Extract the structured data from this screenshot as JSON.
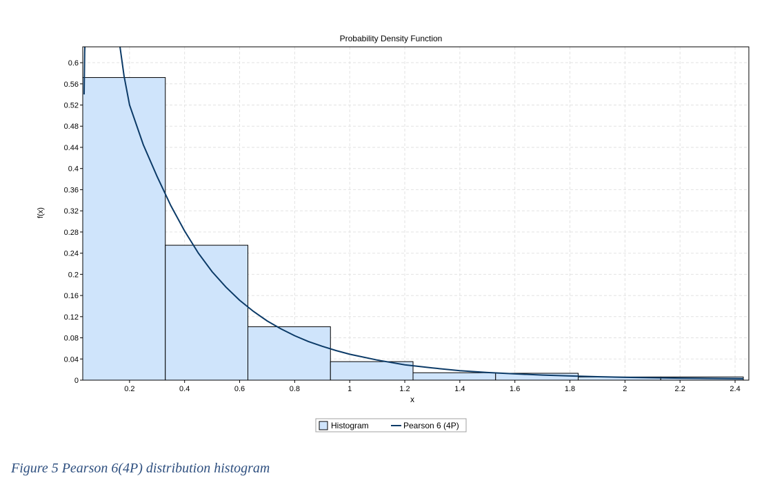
{
  "chart_data": {
    "type": "bar",
    "title": "Probability Density Function",
    "xlabel": "x",
    "ylabel": "f(x)",
    "xlim": [
      0.03,
      2.45
    ],
    "ylim": [
      0,
      0.63
    ],
    "xticks": [
      "0.2",
      "0.4",
      "0.6",
      "0.8",
      "1",
      "1.2",
      "1.4",
      "1.6",
      "1.8",
      "2",
      "2.2",
      "2.4"
    ],
    "yticks": [
      "0",
      "0.04",
      "0.08",
      "0.12",
      "0.16",
      "0.2",
      "0.24",
      "0.28",
      "0.32",
      "0.36",
      "0.4",
      "0.44",
      "0.48",
      "0.52",
      "0.56",
      "0.6"
    ],
    "grid": true,
    "legend_position": "bottom-center",
    "bins": [
      {
        "x0": 0.03,
        "x1": 0.33,
        "value": 0.572
      },
      {
        "x0": 0.33,
        "x1": 0.63,
        "value": 0.255
      },
      {
        "x0": 0.63,
        "x1": 0.93,
        "value": 0.101
      },
      {
        "x0": 0.93,
        "x1": 1.23,
        "value": 0.035
      },
      {
        "x0": 1.23,
        "x1": 1.53,
        "value": 0.014
      },
      {
        "x0": 1.53,
        "x1": 1.83,
        "value": 0.013
      },
      {
        "x0": 1.83,
        "x1": 2.13,
        "value": 0.006
      },
      {
        "x0": 2.13,
        "x1": 2.43,
        "value": 0.006
      }
    ],
    "curve": {
      "name": "Pearson 6 (4P)",
      "points": [
        [
          0.035,
          0.54
        ],
        [
          0.037,
          0.62
        ],
        [
          0.039,
          0.65
        ],
        [
          0.16,
          0.65
        ],
        [
          0.18,
          0.575
        ],
        [
          0.2,
          0.52
        ],
        [
          0.25,
          0.445
        ],
        [
          0.3,
          0.385
        ],
        [
          0.35,
          0.33
        ],
        [
          0.4,
          0.282
        ],
        [
          0.45,
          0.24
        ],
        [
          0.5,
          0.205
        ],
        [
          0.55,
          0.176
        ],
        [
          0.6,
          0.151
        ],
        [
          0.65,
          0.13
        ],
        [
          0.7,
          0.112
        ],
        [
          0.75,
          0.097
        ],
        [
          0.8,
          0.084
        ],
        [
          0.85,
          0.073
        ],
        [
          0.9,
          0.064
        ],
        [
          0.95,
          0.056
        ],
        [
          1.0,
          0.049
        ],
        [
          1.1,
          0.038
        ],
        [
          1.2,
          0.029
        ],
        [
          1.3,
          0.023
        ],
        [
          1.4,
          0.018
        ],
        [
          1.5,
          0.0145
        ],
        [
          1.6,
          0.0118
        ],
        [
          1.7,
          0.0096
        ],
        [
          1.8,
          0.0079
        ],
        [
          1.9,
          0.0065
        ],
        [
          2.0,
          0.0054
        ],
        [
          2.1,
          0.0045
        ],
        [
          2.2,
          0.0038
        ],
        [
          2.3,
          0.0032
        ],
        [
          2.4,
          0.0027
        ],
        [
          2.43,
          0.0026
        ]
      ]
    },
    "legend": [
      {
        "label": "Histogram",
        "kind": "box"
      },
      {
        "label": "Pearson 6 (4P)",
        "kind": "line"
      }
    ],
    "colors": {
      "bar_fill": "#cfe4fb",
      "bar_stroke": "#000000",
      "curve": "#0b3a67",
      "grid": "#e2e2e2",
      "axis": "#000000"
    }
  },
  "caption": "Figure 5 Pearson 6(4P) distribution histogram"
}
